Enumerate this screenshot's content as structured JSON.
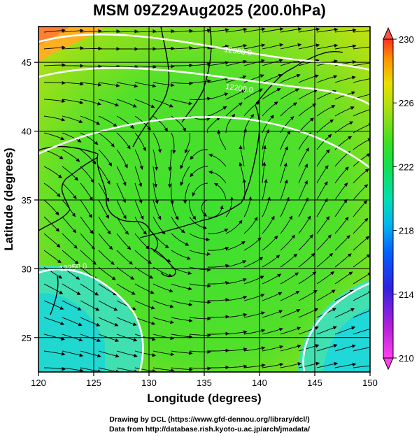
{
  "title": "MSM 09Z29Aug2025 (200.0hPa)",
  "x_axis": {
    "label": "Longitude (degrees)",
    "range": [
      120,
      150
    ],
    "ticks": [
      "120",
      "125",
      "130",
      "135",
      "140",
      "145",
      "150"
    ]
  },
  "y_axis": {
    "label": "Latitude  (degrees)",
    "range": [
      22.5,
      47.6
    ],
    "ticks": [
      "25",
      "30",
      "35",
      "40",
      "45"
    ]
  },
  "colorbar": {
    "range": [
      210,
      230
    ],
    "ticks": [
      "210",
      "214",
      "218",
      "222",
      "226",
      "230"
    ],
    "colors": [
      "#ff3cf0",
      "#c020d8",
      "#4020e0",
      "#0050ff",
      "#00b0f0",
      "#00e0c0",
      "#10e060",
      "#40e020",
      "#a0e010",
      "#e8e000",
      "#ffa000",
      "#ff4020"
    ]
  },
  "contour_labels": [
    "12300.0",
    "12200.0",
    "12250.0"
  ],
  "credits": [
    "Drawing by DCL (https://www.gfd-dennou.org/library/dcl/)",
    "Data from http://database.rish.kyoto-u.ac.jp/arch/jmadata/"
  ]
}
